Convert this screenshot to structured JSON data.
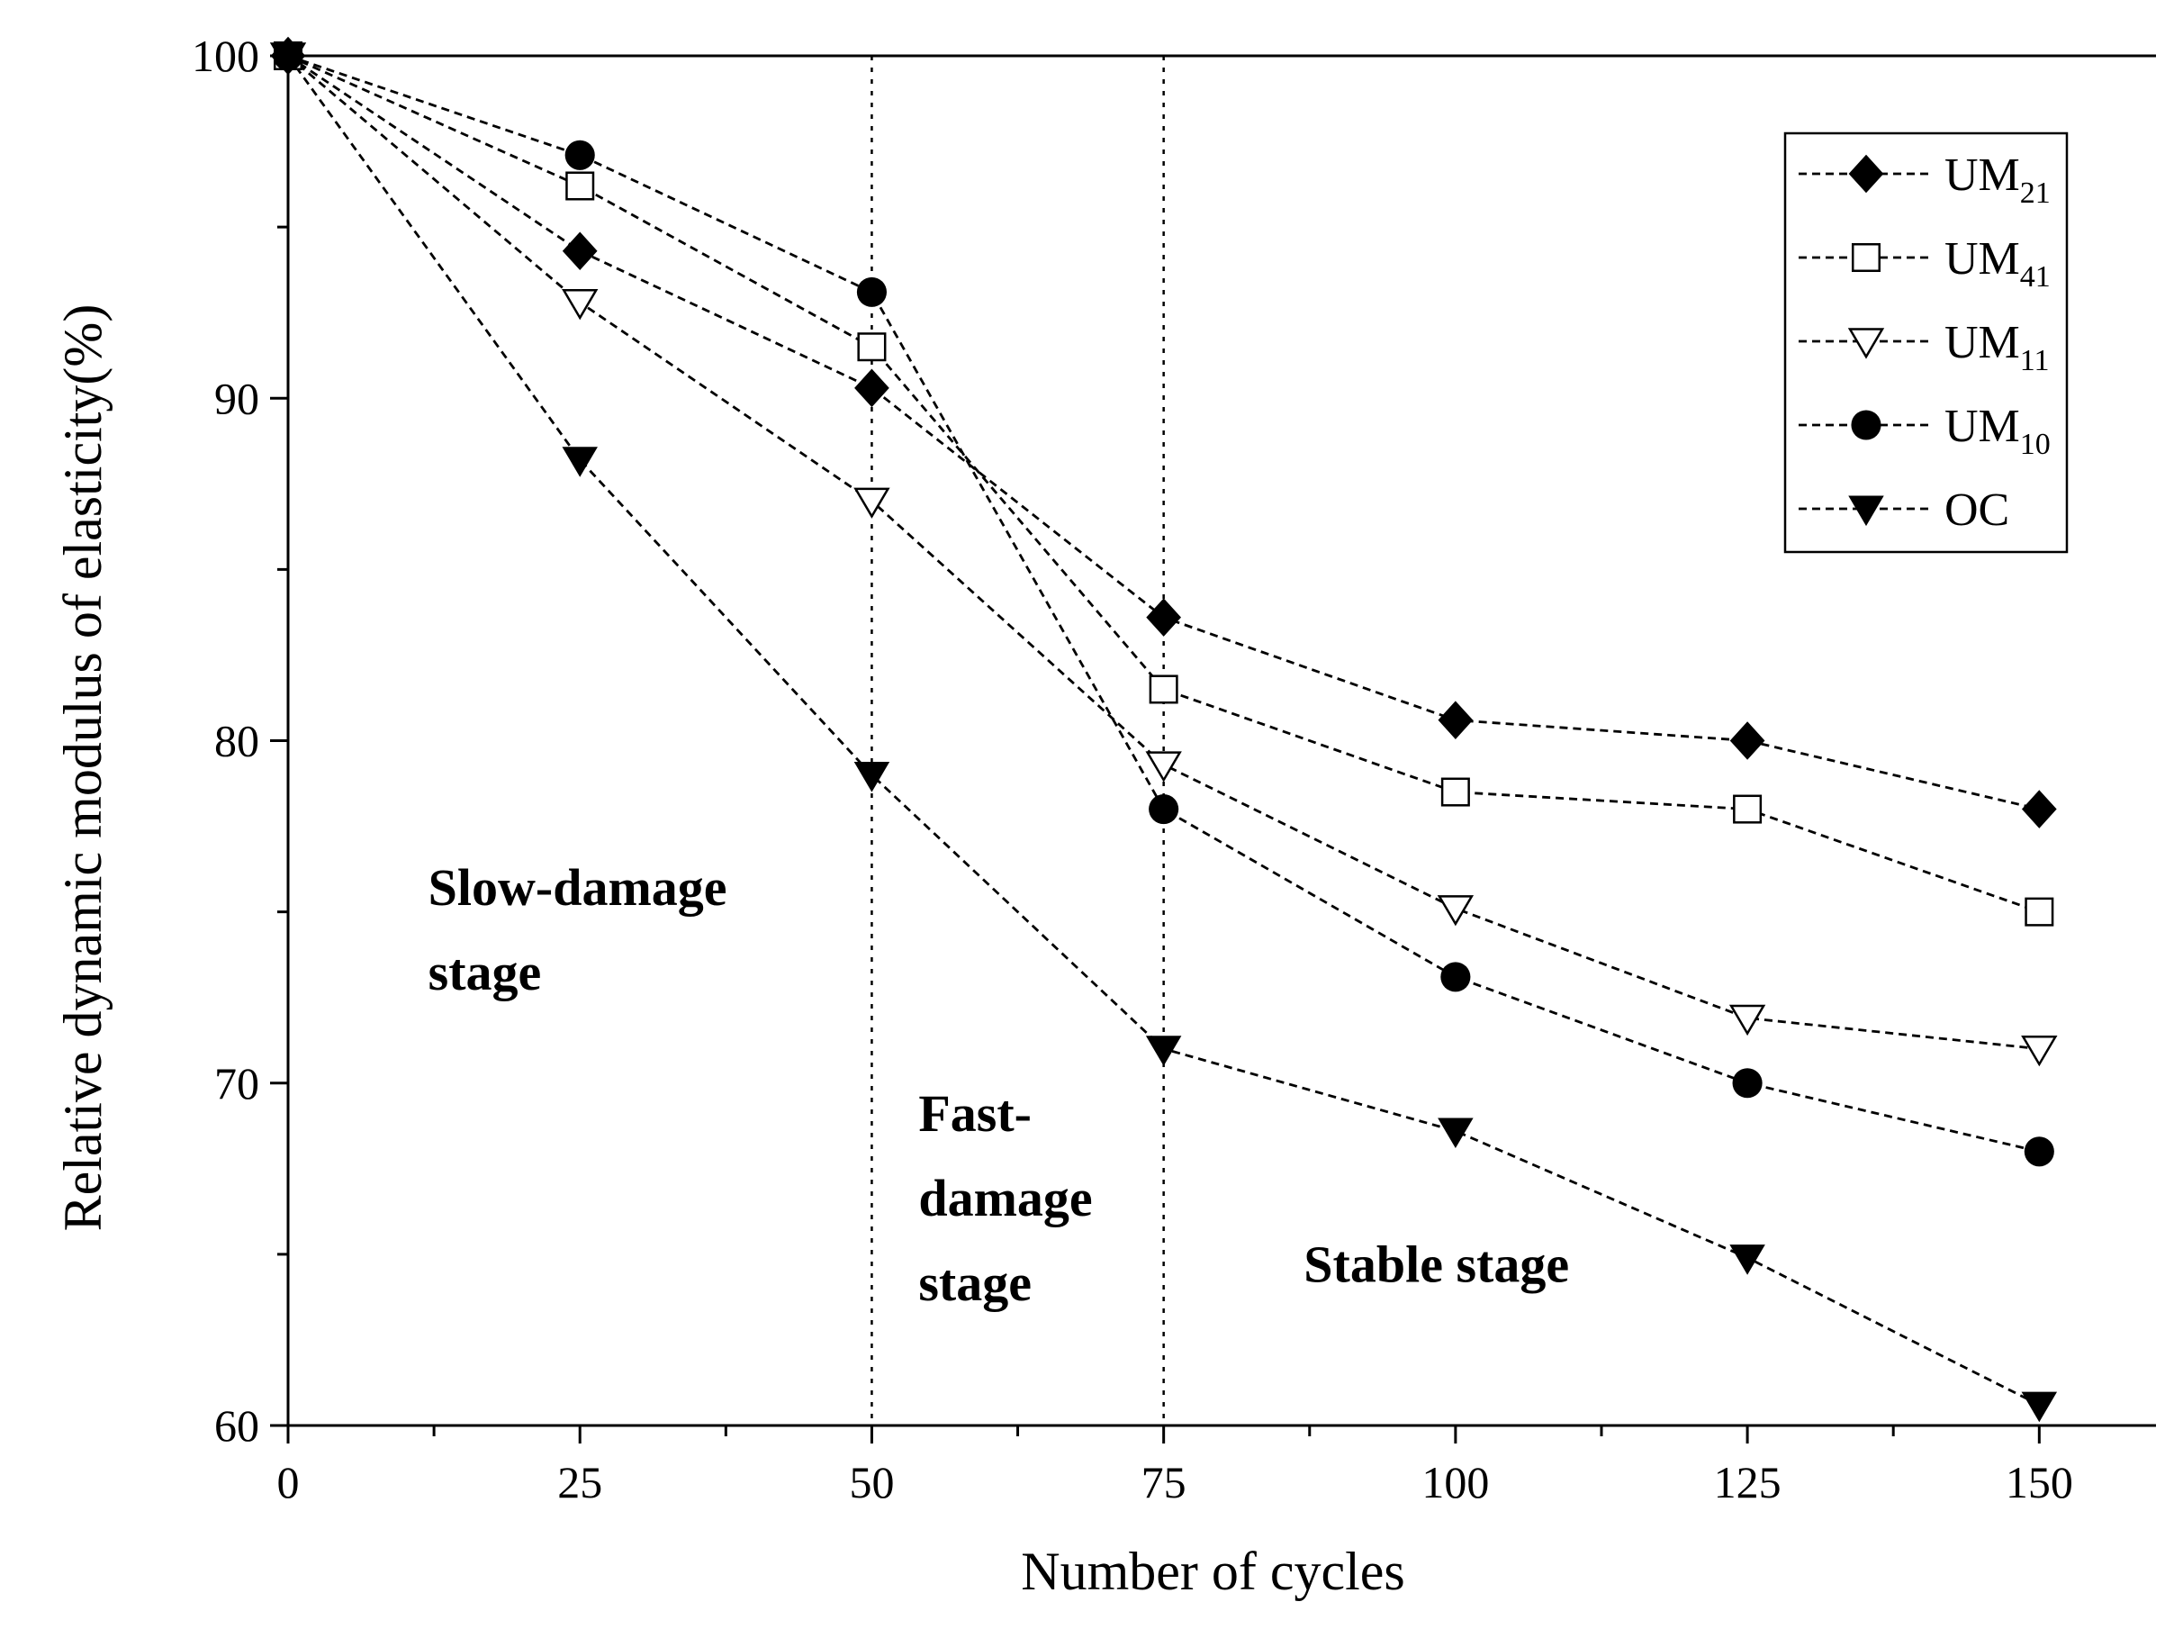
{
  "chart_data": {
    "type": "line",
    "title": "",
    "xlabel": "Number of cycles",
    "ylabel": "Relative dynamic modulus of elasticity(%)",
    "xlim": [
      0,
      160
    ],
    "ylim": [
      60,
      100
    ],
    "x_ticks": [
      0,
      25,
      50,
      75,
      100,
      125,
      150
    ],
    "y_ticks": [
      60,
      70,
      80,
      90,
      100
    ],
    "x": [
      0,
      25,
      50,
      75,
      100,
      125,
      150
    ],
    "series": [
      {
        "name": "UM21",
        "label_main": "UM",
        "label_sub": "21",
        "marker": "diamond-filled",
        "values": [
          100,
          94.3,
          90.3,
          83.6,
          80.6,
          80.0,
          78.0
        ]
      },
      {
        "name": "UM41",
        "label_main": "UM",
        "label_sub": "41",
        "marker": "square-open",
        "values": [
          100,
          96.2,
          91.5,
          81.5,
          78.5,
          78.0,
          75.0
        ]
      },
      {
        "name": "UM11",
        "label_main": "UM",
        "label_sub": "11",
        "marker": "triangle-down-open",
        "values": [
          100,
          92.8,
          87.0,
          79.3,
          75.1,
          71.9,
          71.0
        ]
      },
      {
        "name": "UM10",
        "label_main": "UM",
        "label_sub": "10",
        "marker": "circle-filled",
        "values": [
          100,
          97.1,
          93.1,
          78.0,
          73.1,
          70.0,
          68.0
        ]
      },
      {
        "name": "OC",
        "label_main": "OC",
        "label_sub": "",
        "marker": "triangle-down-filled",
        "values": [
          100,
          88.2,
          79.0,
          71.0,
          68.6,
          64.9,
          60.6
        ]
      }
    ],
    "stage_dividers_x": [
      50,
      75
    ],
    "annotations": [
      {
        "lines": [
          "Slow-damage",
          "stage"
        ],
        "x": 12,
        "y": 75.2
      },
      {
        "lines": [
          "Fast-",
          "damage",
          "stage"
        ],
        "x": 54,
        "y": 68.6
      },
      {
        "lines": [
          "Stable stage"
        ],
        "x": 87,
        "y": 64.2
      }
    ],
    "legend_position": "top-right",
    "grid": false
  }
}
